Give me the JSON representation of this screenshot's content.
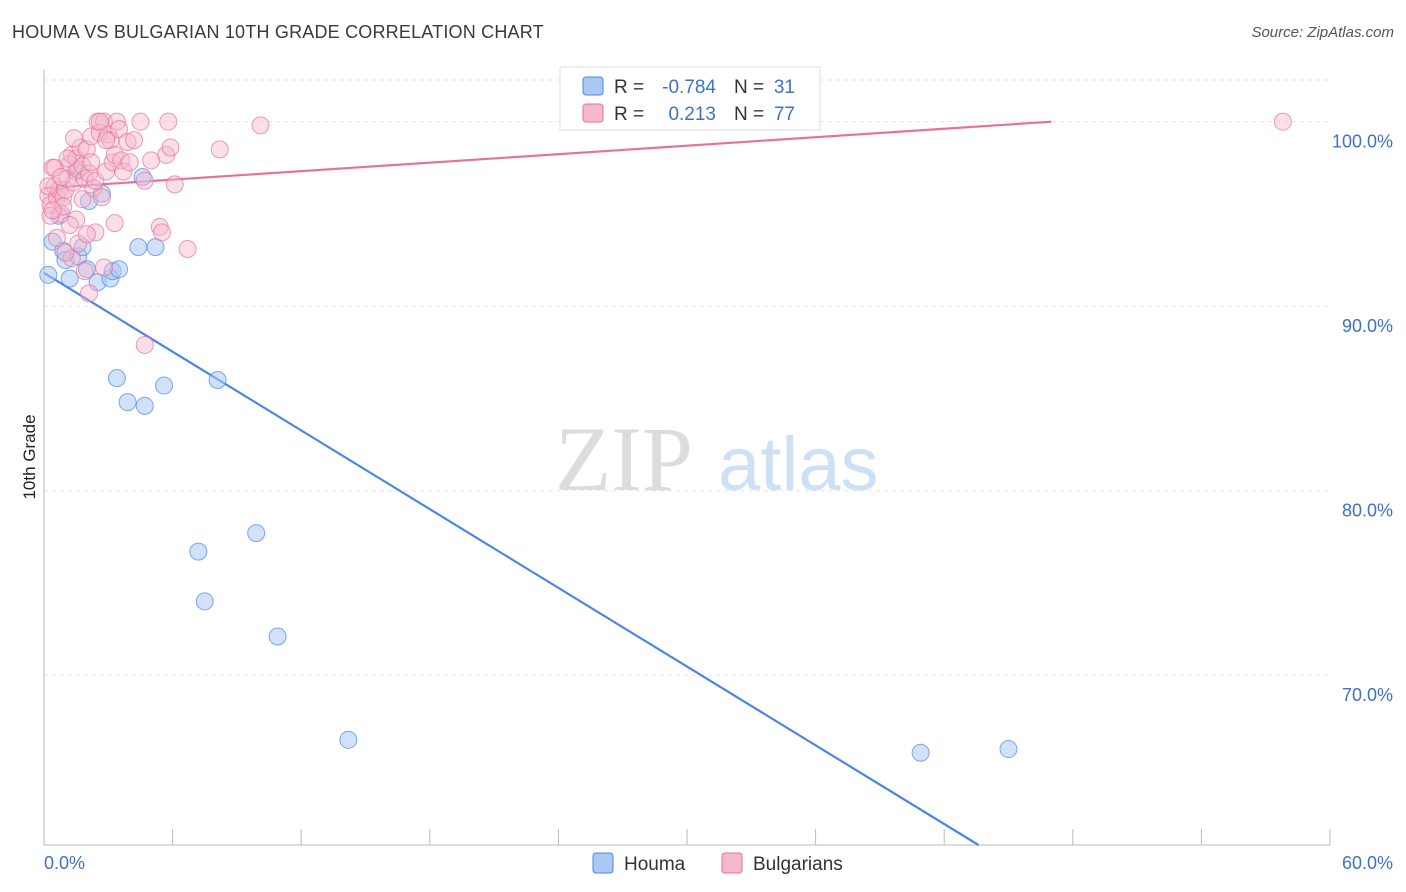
{
  "title": "HOUMA VS BULGARIAN 10TH GRADE CORRELATION CHART",
  "source": "Source: ZipAtlas.com",
  "watermark": {
    "zip": "ZIP",
    "atlas": "atlas"
  },
  "colors": {
    "houma": "#4a86e8",
    "houma_fill": "#a9c8f2",
    "bulgarians": "#e8719a",
    "bulgarians_fill": "#f5b8cc",
    "axis_text": "#3f72c5"
  },
  "chart_data": {
    "type": "scatter",
    "title": "HOUMA VS BULGARIAN 10TH GRADE CORRELATION CHART",
    "xlabel": "",
    "ylabel": "10th Grade",
    "xlim": [
      0,
      60
    ],
    "ylim": [
      60.8,
      102.8
    ],
    "x_tick_labels": [
      "0.0%",
      "60.0%"
    ],
    "y_ticks": [
      70,
      80,
      90,
      100
    ],
    "y_tick_labels": [
      "70.0%",
      "80.0%",
      "90.0%",
      "100.0%"
    ],
    "legend": {
      "entries": [
        {
          "name": "Houma",
          "r_label": "R =",
          "r_value": "-0.784",
          "n_label": "N =",
          "n_value": "31"
        },
        {
          "name": "Bulgarians",
          "r_label": "R =",
          "r_value": "0.213",
          "n_label": "N =",
          "n_value": "77"
        }
      ]
    },
    "series": [
      {
        "name": "Houma",
        "trend": [
          [
            0,
            91.8
          ],
          [
            43.6,
            60.8
          ]
        ],
        "points": [
          [
            0.2,
            91.7
          ],
          [
            0.4,
            93.5
          ],
          [
            0.7,
            94.9
          ],
          [
            0.9,
            93.0
          ],
          [
            1.0,
            92.5
          ],
          [
            1.2,
            91.5
          ],
          [
            1.5,
            97.3
          ],
          [
            1.6,
            92.7
          ],
          [
            1.8,
            93.2
          ],
          [
            2.0,
            92.0
          ],
          [
            2.1,
            95.7
          ],
          [
            2.5,
            91.3
          ],
          [
            2.7,
            96.1
          ],
          [
            3.1,
            91.5
          ],
          [
            3.2,
            91.9
          ],
          [
            3.5,
            92.0
          ],
          [
            4.6,
            97.0
          ],
          [
            4.4,
            93.2
          ],
          [
            5.2,
            93.2
          ],
          [
            3.4,
            86.1
          ],
          [
            3.9,
            84.8
          ],
          [
            4.7,
            84.6
          ],
          [
            5.6,
            85.7
          ],
          [
            8.1,
            86.0
          ],
          [
            7.2,
            76.7
          ],
          [
            7.5,
            74.0
          ],
          [
            9.9,
            77.7
          ],
          [
            10.9,
            72.1
          ],
          [
            14.2,
            66.5
          ],
          [
            40.9,
            65.8
          ],
          [
            45.0,
            66.0
          ]
        ]
      },
      {
        "name": "Bulgarians",
        "trend": [
          [
            0,
            96.4
          ],
          [
            47.0,
            100.0
          ]
        ],
        "points": [
          [
            0.2,
            96.0
          ],
          [
            0.3,
            95.5
          ],
          [
            0.4,
            97.5
          ],
          [
            0.5,
            96.5
          ],
          [
            0.6,
            95.9
          ],
          [
            0.7,
            96.3
          ],
          [
            0.8,
            95.0
          ],
          [
            0.9,
            95.9
          ],
          [
            1.0,
            96.3
          ],
          [
            1.1,
            96.9
          ],
          [
            1.2,
            97.7
          ],
          [
            1.3,
            98.2
          ],
          [
            1.4,
            96.7
          ],
          [
            1.5,
            98.0
          ],
          [
            1.6,
            97.4
          ],
          [
            1.7,
            98.6
          ],
          [
            1.8,
            97.6
          ],
          [
            1.9,
            96.9
          ],
          [
            2.0,
            98.5
          ],
          [
            2.1,
            97.2
          ],
          [
            2.2,
            99.2
          ],
          [
            2.3,
            96.4
          ],
          [
            2.4,
            96.8
          ],
          [
            2.5,
            100.0
          ],
          [
            2.6,
            99.4
          ],
          [
            2.7,
            95.9
          ],
          [
            2.8,
            100.0
          ],
          [
            2.9,
            97.3
          ],
          [
            3.0,
            99.3
          ],
          [
            3.1,
            99.0
          ],
          [
            3.2,
            97.8
          ],
          [
            3.3,
            98.2
          ],
          [
            3.4,
            100.0
          ],
          [
            3.5,
            99.6
          ],
          [
            3.6,
            97.9
          ],
          [
            3.7,
            97.3
          ],
          [
            3.9,
            98.9
          ],
          [
            4.0,
            97.8
          ],
          [
            4.2,
            99.0
          ],
          [
            4.5,
            100.0
          ],
          [
            4.7,
            96.8
          ],
          [
            5.0,
            97.9
          ],
          [
            5.4,
            94.3
          ],
          [
            5.5,
            94.0
          ],
          [
            5.7,
            98.2
          ],
          [
            5.8,
            100.0
          ],
          [
            5.9,
            98.6
          ],
          [
            6.1,
            96.6
          ],
          [
            6.7,
            93.1
          ],
          [
            8.2,
            98.5
          ],
          [
            10.1,
            99.8
          ],
          [
            1.3,
            92.6
          ],
          [
            1.9,
            91.9
          ],
          [
            2.1,
            90.7
          ],
          [
            2.8,
            92.1
          ],
          [
            3.3,
            94.5
          ],
          [
            4.7,
            87.9
          ],
          [
            1.0,
            92.9
          ],
          [
            1.6,
            93.4
          ],
          [
            0.6,
            93.7
          ],
          [
            1.5,
            94.7
          ],
          [
            2.4,
            94.0
          ],
          [
            0.3,
            94.9
          ],
          [
            0.9,
            95.4
          ],
          [
            1.8,
            95.8
          ],
          [
            0.5,
            97.5
          ],
          [
            1.1,
            98.0
          ],
          [
            2.2,
            97.8
          ],
          [
            1.4,
            99.1
          ],
          [
            2.6,
            100.0
          ],
          [
            0.2,
            96.5
          ],
          [
            0.4,
            95.2
          ],
          [
            1.2,
            94.4
          ],
          [
            2.0,
            93.9
          ],
          [
            2.9,
            99.0
          ],
          [
            57.8,
            100.0
          ],
          [
            0.8,
            97.0
          ]
        ]
      }
    ]
  }
}
